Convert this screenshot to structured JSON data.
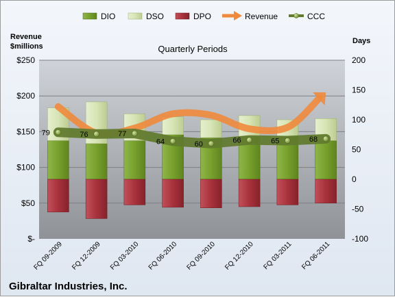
{
  "chart_data": {
    "type": "bar",
    "subtitle": "Quarterly Periods",
    "company": "Gibraltar Industries, Inc.",
    "left_axis": {
      "title_line1": "Revenue",
      "title_line2": "$millions",
      "ticks": [
        "$-",
        "$50",
        "$100",
        "$150",
        "$200",
        "$250"
      ],
      "ylim": [
        0,
        250
      ]
    },
    "right_axis": {
      "title": "Days",
      "ticks": [
        "-100",
        "-50",
        "0",
        "50",
        "100",
        "150",
        "200"
      ],
      "ylim": [
        -100,
        200
      ]
    },
    "categories": [
      "FQ 09-2009",
      "FQ 12-2009",
      "FQ 03-2010",
      "FQ 06-2010",
      "FQ 09-2010",
      "FQ 12-2010",
      "FQ 03-2011",
      "FQ 06-2011"
    ],
    "series": [
      {
        "name": "DIO",
        "kind": "stacked-bar",
        "color": "#77a02c",
        "values": [
          65,
          60,
          65,
          75,
          70,
          72,
          72,
          65
        ]
      },
      {
        "name": "DSO",
        "kind": "stacked-bar",
        "color": "#d7e4b5",
        "values": [
          55,
          70,
          45,
          30,
          30,
          35,
          28,
          37
        ]
      },
      {
        "name": "DPO",
        "kind": "negative-bar",
        "color": "#a8323c",
        "values": [
          -55,
          -66,
          -43,
          -47,
          -48,
          -46,
          -43,
          -40
        ]
      },
      {
        "name": "Revenue",
        "kind": "arrow-line",
        "color": "#ef8a3c",
        "values": [
          185,
          148,
          155,
          175,
          173,
          154,
          156,
          205
        ]
      },
      {
        "name": "CCC",
        "kind": "line-markers",
        "color": "#627b2f",
        "values": [
          79,
          76,
          77,
          64,
          60,
          66,
          65,
          68
        ]
      }
    ],
    "ccc_labels": [
      "79",
      "76",
      "77",
      "64",
      "60",
      "66",
      "65",
      "68"
    ]
  }
}
